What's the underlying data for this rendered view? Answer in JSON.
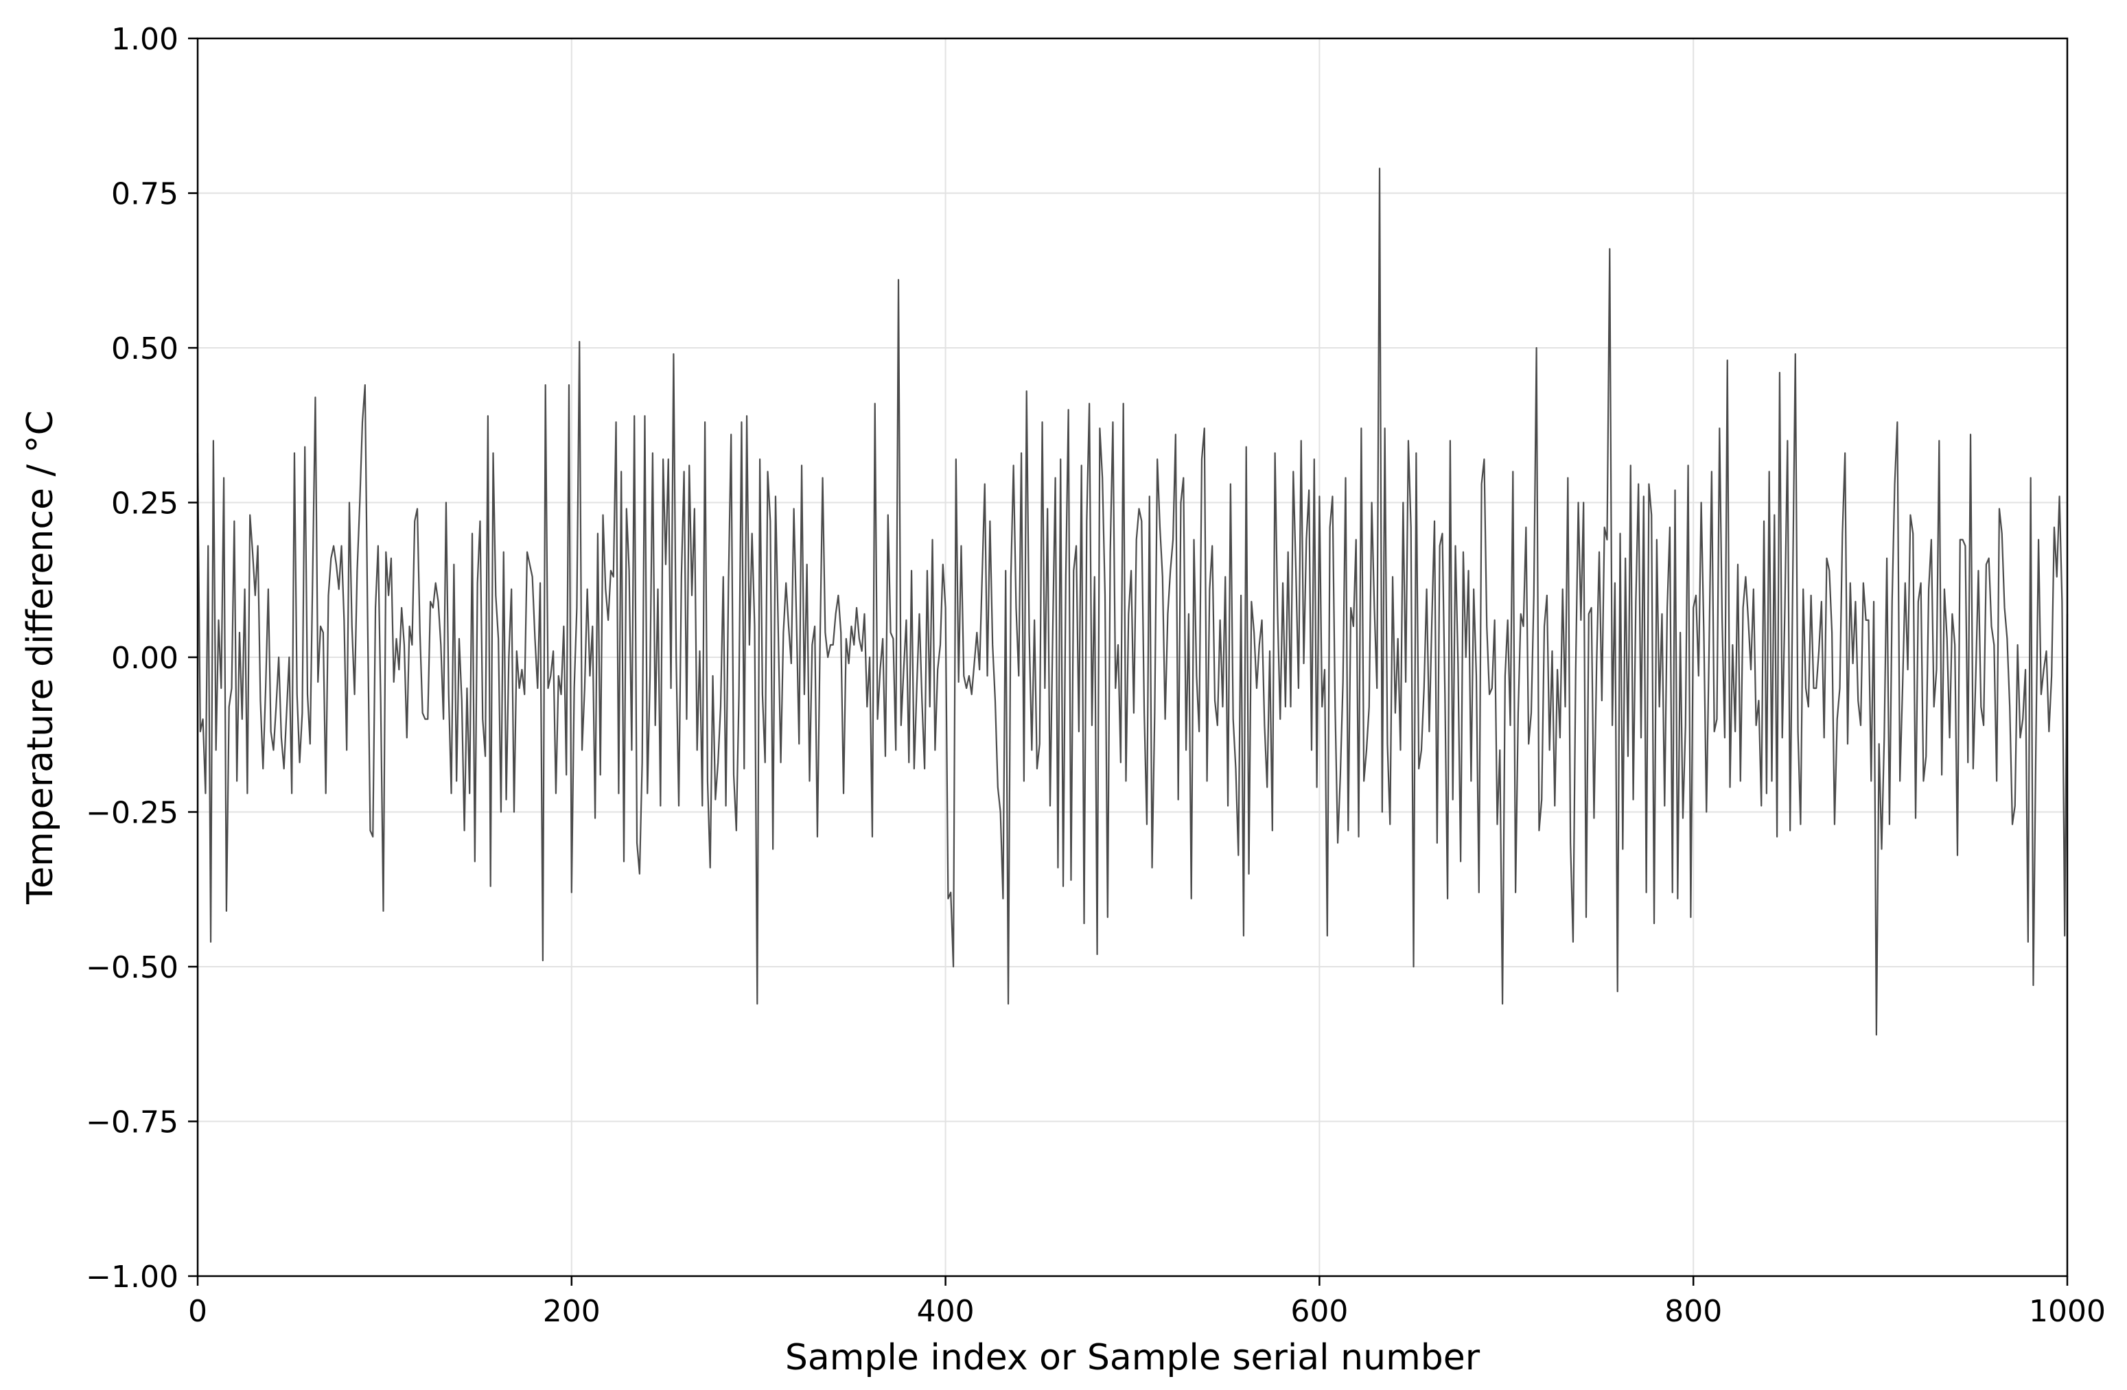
{
  "chart_data": {
    "type": "line",
    "title": "",
    "xlabel": "Sample index or Sample serial number",
    "ylabel": "Temperature difference / °C",
    "xlim": [
      0,
      1000
    ],
    "ylim": [
      -1.0,
      1.0
    ],
    "xticks": [
      0,
      200,
      400,
      600,
      800,
      1000
    ],
    "xtick_labels": [
      "0",
      "200",
      "400",
      "600",
      "800",
      "1000"
    ],
    "yticks": [
      -1.0,
      -0.75,
      -0.5,
      -0.25,
      0.0,
      0.25,
      0.5,
      0.75,
      1.0
    ],
    "ytick_labels": [
      "−1.00",
      "−0.75",
      "−0.50",
      "−0.25",
      "0.00",
      "0.25",
      "0.50",
      "0.75",
      "1.00"
    ],
    "grid": true,
    "legend": "none",
    "line_color": "#4a4a4a",
    "grid_color": "#e2e2e2",
    "series": [
      {
        "x_start": 0,
        "x_step": 1,
        "values": [
          0.33,
          -0.12,
          -0.1,
          -0.22,
          0.18,
          -0.46,
          0.35,
          -0.15,
          0.06,
          -0.05,
          0.29,
          -0.41,
          -0.08,
          -0.05,
          0.22,
          -0.2,
          0.04,
          -0.1,
          0.11,
          -0.22,
          0.23,
          0.17,
          0.1,
          0.18,
          -0.07,
          -0.18,
          -0.05,
          0.11,
          -0.12,
          -0.15,
          -0.08,
          0.0,
          -0.13,
          -0.18,
          -0.09,
          0.0,
          -0.22,
          0.33,
          -0.06,
          -0.17,
          -0.09,
          0.34,
          -0.06,
          -0.14,
          0.14,
          0.42,
          -0.04,
          0.05,
          0.04,
          -0.22,
          0.1,
          0.16,
          0.18,
          0.15,
          0.11,
          0.18,
          0.06,
          -0.15,
          0.25,
          0.05,
          -0.06,
          0.14,
          0.25,
          0.38,
          0.44,
          0.06,
          -0.28,
          -0.29,
          0.08,
          0.18,
          -0.07,
          -0.41,
          0.17,
          0.1,
          0.16,
          -0.04,
          0.03,
          -0.02,
          0.08,
          0.02,
          -0.13,
          0.05,
          0.02,
          0.22,
          0.24,
          0.04,
          -0.09,
          -0.1,
          -0.1,
          0.09,
          0.08,
          0.12,
          0.09,
          0.02,
          -0.1,
          0.25,
          -0.06,
          -0.22,
          0.15,
          -0.2,
          0.03,
          -0.07,
          -0.28,
          -0.05,
          -0.22,
          0.2,
          -0.33,
          0.12,
          0.22,
          -0.1,
          -0.16,
          0.39,
          -0.37,
          0.33,
          0.1,
          0.03,
          -0.25,
          0.17,
          -0.23,
          0.0,
          0.11,
          -0.25,
          0.01,
          -0.05,
          -0.02,
          -0.06,
          0.17,
          0.15,
          0.13,
          0.03,
          -0.05,
          0.12,
          -0.49,
          0.44,
          -0.05,
          -0.03,
          0.01,
          -0.22,
          -0.03,
          -0.06,
          0.05,
          -0.19,
          0.44,
          -0.38,
          -0.05,
          0.08,
          0.51,
          -0.15,
          -0.05,
          0.11,
          -0.03,
          0.05,
          -0.26,
          0.2,
          -0.19,
          0.23,
          0.11,
          0.06,
          0.14,
          0.13,
          0.38,
          -0.22,
          0.3,
          -0.33,
          0.24,
          0.14,
          -0.15,
          0.39,
          -0.3,
          -0.35,
          -0.17,
          0.39,
          -0.22,
          -0.03,
          0.33,
          -0.11,
          0.11,
          -0.24,
          0.32,
          0.15,
          0.32,
          -0.05,
          0.49,
          0.0,
          -0.24,
          0.13,
          0.3,
          -0.1,
          0.31,
          0.1,
          0.24,
          -0.15,
          0.01,
          -0.24,
          0.38,
          -0.2,
          -0.34,
          -0.03,
          -0.23,
          -0.17,
          -0.08,
          0.13,
          -0.24,
          0.12,
          0.36,
          -0.19,
          -0.28,
          -0.06,
          0.38,
          -0.18,
          0.39,
          0.02,
          0.2,
          0.05,
          -0.56,
          0.32,
          -0.06,
          -0.17,
          0.3,
          0.22,
          -0.31,
          0.26,
          0.05,
          -0.17,
          0.04,
          0.12,
          0.05,
          -0.01,
          0.24,
          0.06,
          -0.14,
          0.31,
          -0.06,
          0.15,
          -0.2,
          0.02,
          0.05,
          -0.29,
          0.02,
          0.29,
          0.04,
          0.0,
          0.02,
          0.02,
          0.07,
          0.1,
          0.04,
          -0.22,
          0.03,
          -0.01,
          0.05,
          0.02,
          0.08,
          0.03,
          0.01,
          0.07,
          -0.08,
          0.0,
          -0.29,
          0.41,
          -0.1,
          -0.02,
          0.03,
          -0.16,
          0.23,
          0.04,
          0.03,
          -0.15,
          0.61,
          -0.11,
          -0.02,
          0.06,
          -0.17,
          0.14,
          -0.18,
          -0.05,
          0.07,
          -0.07,
          -0.18,
          0.14,
          -0.08,
          0.19,
          -0.15,
          -0.02,
          0.02,
          0.15,
          0.08,
          -0.39,
          -0.38,
          -0.5,
          0.32,
          -0.04,
          0.18,
          -0.03,
          -0.05,
          -0.03,
          -0.06,
          -0.01,
          0.04,
          -0.02,
          0.13,
          0.28,
          -0.03,
          0.22,
          0.02,
          -0.07,
          -0.21,
          -0.25,
          -0.39,
          0.14,
          -0.56,
          0.13,
          0.31,
          0.08,
          -0.03,
          0.33,
          -0.2,
          0.43,
          0.04,
          -0.15,
          0.06,
          -0.18,
          -0.14,
          0.38,
          -0.05,
          0.24,
          -0.24,
          0.04,
          0.29,
          -0.34,
          0.32,
          -0.37,
          0.13,
          0.4,
          -0.36,
          0.14,
          0.18,
          -0.12,
          0.31,
          -0.43,
          0.22,
          0.41,
          -0.11,
          0.13,
          -0.48,
          0.37,
          0.29,
          0.1,
          -0.42,
          0.17,
          0.38,
          -0.05,
          0.02,
          -0.17,
          0.41,
          -0.2,
          0.07,
          0.14,
          -0.09,
          0.19,
          0.24,
          0.22,
          -0.09,
          -0.27,
          0.26,
          -0.34,
          -0.09,
          0.32,
          0.21,
          0.13,
          -0.1,
          0.07,
          0.14,
          0.19,
          0.36,
          -0.23,
          0.25,
          0.29,
          -0.15,
          0.07,
          -0.39,
          0.19,
          -0.03,
          -0.12,
          0.32,
          0.37,
          -0.2,
          0.11,
          0.18,
          -0.07,
          -0.11,
          0.06,
          -0.08,
          0.13,
          -0.24,
          0.28,
          -0.1,
          -0.18,
          -0.32,
          0.1,
          -0.45,
          0.34,
          -0.35,
          0.09,
          0.04,
          -0.05,
          0.02,
          0.06,
          -0.11,
          -0.21,
          0.01,
          -0.28,
          0.33,
          0.07,
          -0.1,
          0.12,
          -0.08,
          0.17,
          -0.08,
          0.3,
          0.14,
          -0.05,
          0.35,
          -0.01,
          0.19,
          0.27,
          -0.15,
          0.32,
          -0.21,
          0.26,
          -0.08,
          -0.02,
          -0.45,
          0.21,
          0.26,
          -0.08,
          -0.3,
          -0.19,
          -0.04,
          0.29,
          -0.28,
          0.08,
          0.05,
          0.19,
          -0.29,
          0.37,
          -0.2,
          -0.15,
          -0.08,
          0.25,
          0.08,
          -0.05,
          0.79,
          -0.25,
          0.37,
          -0.14,
          -0.27,
          0.13,
          -0.09,
          0.03,
          -0.15,
          0.25,
          -0.04,
          0.35,
          0.21,
          -0.5,
          0.33,
          -0.18,
          -0.15,
          -0.05,
          0.11,
          -0.12,
          0.06,
          0.22,
          -0.3,
          0.18,
          0.2,
          -0.06,
          -0.39,
          0.35,
          -0.23,
          0.18,
          -0.01,
          -0.33,
          0.17,
          0.0,
          0.14,
          -0.2,
          0.11,
          -0.03,
          -0.38,
          0.28,
          0.32,
          0.05,
          -0.06,
          -0.05,
          0.06,
          -0.27,
          -0.15,
          -0.56,
          -0.03,
          0.06,
          -0.11,
          0.3,
          -0.38,
          -0.09,
          0.07,
          0.05,
          0.21,
          -0.14,
          -0.09,
          0.1,
          0.5,
          -0.28,
          -0.23,
          0.05,
          0.1,
          -0.15,
          0.01,
          -0.24,
          -0.02,
          -0.13,
          0.11,
          -0.08,
          0.29,
          -0.3,
          -0.46,
          -0.02,
          0.25,
          0.06,
          0.25,
          -0.42,
          0.07,
          0.08,
          -0.26,
          -0.01,
          0.17,
          -0.07,
          0.21,
          0.19,
          0.66,
          -0.11,
          0.12,
          -0.54,
          0.2,
          -0.31,
          0.16,
          -0.16,
          0.31,
          -0.23,
          0.09,
          0.28,
          -0.13,
          0.26,
          -0.38,
          0.28,
          0.23,
          -0.43,
          0.19,
          -0.08,
          0.07,
          -0.24,
          0.08,
          0.21,
          -0.38,
          0.27,
          -0.39,
          0.04,
          -0.26,
          -0.11,
          0.31,
          -0.42,
          0.08,
          0.1,
          -0.03,
          0.25,
          0.04,
          -0.25,
          0.01,
          0.3,
          -0.12,
          -0.1,
          0.37,
          0.06,
          -0.13,
          0.48,
          -0.21,
          0.02,
          -0.12,
          0.15,
          -0.2,
          0.08,
          0.13,
          0.06,
          -0.02,
          0.11,
          -0.11,
          -0.07,
          -0.24,
          0.22,
          -0.22,
          0.3,
          -0.2,
          0.23,
          -0.29,
          0.46,
          -0.13,
          0.08,
          0.35,
          -0.28,
          0.12,
          0.49,
          -0.12,
          -0.27,
          0.11,
          -0.05,
          -0.08,
          0.1,
          -0.05,
          -0.05,
          0.01,
          0.09,
          -0.13,
          0.16,
          0.14,
          0.04,
          -0.27,
          -0.1,
          -0.05,
          0.2,
          0.33,
          -0.14,
          0.12,
          -0.01,
          0.09,
          -0.07,
          -0.11,
          0.12,
          0.06,
          0.06,
          -0.2,
          0.09,
          -0.61,
          -0.14,
          -0.31,
          -0.13,
          0.16,
          -0.27,
          0.09,
          0.28,
          0.38,
          -0.2,
          -0.05,
          0.12,
          -0.02,
          0.23,
          0.2,
          -0.26,
          0.09,
          0.12,
          -0.2,
          -0.16,
          0.11,
          0.19,
          -0.08,
          -0.02,
          0.35,
          -0.19,
          0.11,
          0.03,
          -0.13,
          0.07,
          0.02,
          -0.32,
          0.19,
          0.19,
          0.18,
          -0.17,
          0.36,
          -0.18,
          -0.03,
          0.14,
          -0.08,
          -0.11,
          0.15,
          0.16,
          0.05,
          0.02,
          -0.2,
          0.24,
          0.2,
          0.08,
          0.03,
          -0.08,
          -0.27,
          -0.24,
          0.02,
          -0.13,
          -0.1,
          -0.02,
          -0.46,
          0.29,
          -0.53,
          -0.14,
          0.19,
          -0.06,
          -0.02,
          0.01,
          -0.12,
          -0.03,
          0.21,
          0.13,
          0.26,
          0.09,
          -0.45,
          0.07
        ]
      }
    ]
  }
}
